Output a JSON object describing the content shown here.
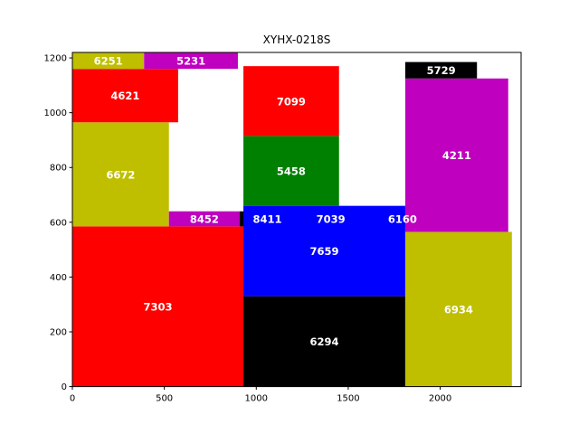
{
  "chart_data": {
    "type": "rectangles",
    "title": "XYHX-0218S",
    "xlim": [
      0,
      2440
    ],
    "ylim": [
      0,
      1220
    ],
    "xticks": [
      0,
      500,
      1000,
      1500,
      2000
    ],
    "yticks": [
      0,
      200,
      400,
      600,
      800,
      1000,
      1200
    ],
    "grid": false,
    "colors": {
      "red": "#ff0000",
      "olive": "#bfbf00",
      "magenta": "#bf00bf",
      "green": "#008000",
      "blue": "#0000ff",
      "black": "#000000",
      "text": "#ffffff"
    },
    "rects": [
      {
        "label": "7303",
        "x0": 0,
        "y0": 0,
        "x1": 930,
        "y1": 585,
        "color": "red"
      },
      {
        "label": "6672",
        "x0": 0,
        "y0": 585,
        "x1": 525,
        "y1": 965,
        "color": "olive"
      },
      {
        "label": "4621",
        "x0": 0,
        "y0": 965,
        "x1": 575,
        "y1": 1160,
        "color": "red"
      },
      {
        "label": "6251",
        "x0": 0,
        "y0": 1160,
        "x1": 390,
        "y1": 1220,
        "color": "olive"
      },
      {
        "label": "5231",
        "x0": 390,
        "y0": 1160,
        "x1": 900,
        "y1": 1220,
        "color": "magenta"
      },
      {
        "label": "8452",
        "x0": 525,
        "y0": 585,
        "x1": 910,
        "y1": 640,
        "color": "magenta"
      },
      {
        "label": "8411",
        "x0": 910,
        "y0": 585,
        "x1": 1210,
        "y1": 640,
        "color": "black"
      },
      {
        "label": "7039",
        "x0": 1210,
        "y0": 585,
        "x1": 1600,
        "y1": 640,
        "color": "blue"
      },
      {
        "label": "6160",
        "x0": 1600,
        "y0": 585,
        "x1": 1990,
        "y1": 640,
        "color": "magenta"
      },
      {
        "label": "6294",
        "x0": 930,
        "y0": 0,
        "x1": 1810,
        "y1": 330,
        "color": "black"
      },
      {
        "label": "7659",
        "x0": 930,
        "y0": 330,
        "x1": 1810,
        "y1": 660,
        "color": "blue"
      },
      {
        "label": "5458",
        "x0": 930,
        "y0": 660,
        "x1": 1450,
        "y1": 915,
        "color": "green"
      },
      {
        "label": "7099",
        "x0": 930,
        "y0": 915,
        "x1": 1450,
        "y1": 1170,
        "color": "red"
      },
      {
        "label": "6934",
        "x0": 1810,
        "y0": 0,
        "x1": 2390,
        "y1": 565,
        "color": "olive"
      },
      {
        "label": "4211",
        "x0": 1810,
        "y0": 565,
        "x1": 2370,
        "y1": 1125,
        "color": "magenta"
      },
      {
        "label": "5729",
        "x0": 1810,
        "y0": 1125,
        "x1": 2200,
        "y1": 1185,
        "color": "black"
      }
    ]
  }
}
